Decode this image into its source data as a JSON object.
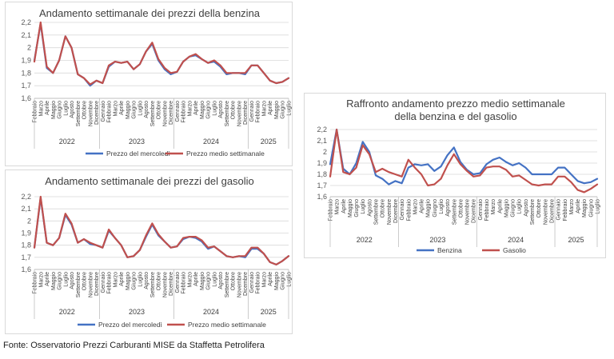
{
  "source": "Fonte: Osservatorio Prezzi Carburanti MISE da Staffetta Petrolifera",
  "colors": {
    "blue": "#4472c4",
    "red": "#c0504d",
    "grid": "#d9d9d9",
    "axis": "#bfbfbf",
    "text": "#595959"
  },
  "month_labels": [
    "Febbraio",
    "Marzo",
    "Aprile",
    "Maggio",
    "Giugno",
    "Luglio",
    "Agosto",
    "Settembre",
    "Ottobre",
    "Novembre",
    "Dicembre",
    "Gennaio",
    "Febbraio",
    "Marzo",
    "Aprile",
    "Maggio",
    "Giugno",
    "Luglio",
    "Agosto",
    "Settembre",
    "Ottobre",
    "Novembre",
    "Dicembre",
    "Gennaio",
    "Febbraio",
    "Marzo",
    "Aprile",
    "Maggio",
    "Giugno",
    "Luglio",
    "Agosto",
    "Settembre",
    "Ottobre",
    "Novembre",
    "Dicembre",
    "Gennaio",
    "Febbraio",
    "Marzo",
    "Aprile",
    "Maggio",
    "Giugno",
    "Luglio"
  ],
  "chart_data": [
    {
      "type": "line",
      "title": "Andamento settimanale dei prezzi della benzina",
      "ylim": [
        1.6,
        2.2
      ],
      "y_ticks": [
        "1,6",
        "1,7",
        "1,8",
        "1,9",
        "2",
        "2,1",
        "2,2"
      ],
      "years": [
        "2022",
        "2023",
        "2024",
        "2025"
      ],
      "x_months": [
        0,
        1,
        2,
        3,
        4,
        5,
        6,
        7,
        8,
        9,
        10,
        11,
        12,
        13,
        14,
        15,
        16,
        17,
        18,
        19,
        20,
        21,
        22,
        23,
        24,
        25,
        26,
        27,
        28,
        29,
        30,
        31,
        32,
        33,
        34,
        35,
        36,
        37,
        38,
        39,
        40,
        41
      ],
      "series": [
        {
          "name": "Prezzo del mercoledì",
          "color": "#4472c4",
          "values": [
            1.9,
            2.19,
            1.84,
            1.8,
            1.9,
            2.09,
            2.0,
            1.79,
            1.76,
            1.7,
            1.74,
            1.72,
            1.85,
            1.89,
            1.88,
            1.89,
            1.83,
            1.87,
            1.97,
            2.03,
            1.9,
            1.83,
            1.79,
            1.81,
            1.89,
            1.93,
            1.94,
            1.91,
            1.88,
            1.89,
            1.85,
            1.79,
            1.8,
            1.8,
            1.79,
            1.86,
            1.86,
            1.8,
            1.74,
            1.72,
            1.73,
            1.76
          ]
        },
        {
          "name": "Prezzo medio settimanale",
          "color": "#c0504d",
          "values": [
            1.89,
            2.2,
            1.85,
            1.8,
            1.9,
            2.09,
            2.0,
            1.79,
            1.76,
            1.71,
            1.74,
            1.72,
            1.86,
            1.89,
            1.88,
            1.89,
            1.83,
            1.87,
            1.97,
            2.04,
            1.91,
            1.84,
            1.8,
            1.81,
            1.89,
            1.93,
            1.95,
            1.91,
            1.88,
            1.9,
            1.86,
            1.8,
            1.8,
            1.8,
            1.8,
            1.86,
            1.86,
            1.8,
            1.74,
            1.72,
            1.73,
            1.76
          ]
        }
      ]
    },
    {
      "type": "line",
      "title": "Andamento settimanale dei prezzi del gasolio",
      "ylim": [
        1.6,
        2.2
      ],
      "y_ticks": [
        "1,6",
        "1,7",
        "1,8",
        "1,9",
        "2",
        "2,1",
        "2,2"
      ],
      "years": [
        "2022",
        "2023",
        "2024",
        "2025"
      ],
      "x_months": [
        0,
        1,
        2,
        3,
        4,
        5,
        6,
        7,
        8,
        9,
        10,
        11,
        12,
        13,
        14,
        15,
        16,
        17,
        18,
        19,
        20,
        21,
        22,
        23,
        24,
        25,
        26,
        27,
        28,
        29,
        30,
        31,
        32,
        33,
        34,
        35,
        36,
        37,
        38,
        39,
        40,
        41
      ],
      "series": [
        {
          "name": "Prezzo del mercoledì",
          "color": "#4472c4",
          "values": [
            1.78,
            2.19,
            1.82,
            1.8,
            1.86,
            2.05,
            1.97,
            1.82,
            1.85,
            1.81,
            1.8,
            1.78,
            1.92,
            1.86,
            1.8,
            1.7,
            1.71,
            1.76,
            1.87,
            1.97,
            1.88,
            1.83,
            1.78,
            1.79,
            1.85,
            1.87,
            1.86,
            1.83,
            1.77,
            1.79,
            1.75,
            1.71,
            1.7,
            1.71,
            1.7,
            1.77,
            1.77,
            1.73,
            1.66,
            1.64,
            1.67,
            1.71
          ]
        },
        {
          "name": "Prezzo medio settimanale",
          "color": "#c0504d",
          "values": [
            1.78,
            2.2,
            1.82,
            1.8,
            1.86,
            2.06,
            1.98,
            1.82,
            1.85,
            1.82,
            1.8,
            1.78,
            1.93,
            1.86,
            1.8,
            1.7,
            1.71,
            1.76,
            1.88,
            1.98,
            1.89,
            1.83,
            1.78,
            1.79,
            1.86,
            1.87,
            1.87,
            1.84,
            1.78,
            1.79,
            1.75,
            1.71,
            1.7,
            1.71,
            1.71,
            1.78,
            1.78,
            1.73,
            1.66,
            1.64,
            1.67,
            1.71
          ]
        }
      ]
    },
    {
      "type": "line",
      "title": "Raffronto andamento prezzo medio settimanale",
      "subtitle": "della benzina e del gasolio",
      "ylim": [
        1.6,
        2.2
      ],
      "y_ticks": [
        "1,6",
        "1,7",
        "1,8",
        "1,9",
        "2",
        "2,1",
        "2,2"
      ],
      "years": [
        "2022",
        "2023",
        "2024",
        "2025"
      ],
      "x_months": [
        0,
        1,
        2,
        3,
        4,
        5,
        6,
        7,
        8,
        9,
        10,
        11,
        12,
        13,
        14,
        15,
        16,
        17,
        18,
        19,
        20,
        21,
        22,
        23,
        24,
        25,
        26,
        27,
        28,
        29,
        30,
        31,
        32,
        33,
        34,
        35,
        36,
        37,
        38,
        39,
        40,
        41
      ],
      "series": [
        {
          "name": "Benzina",
          "color": "#4472c4",
          "values": [
            1.89,
            2.2,
            1.85,
            1.8,
            1.9,
            2.09,
            2.0,
            1.79,
            1.76,
            1.71,
            1.74,
            1.72,
            1.86,
            1.89,
            1.88,
            1.89,
            1.83,
            1.87,
            1.97,
            2.04,
            1.91,
            1.84,
            1.8,
            1.81,
            1.89,
            1.93,
            1.95,
            1.91,
            1.88,
            1.9,
            1.86,
            1.8,
            1.8,
            1.8,
            1.8,
            1.86,
            1.86,
            1.8,
            1.74,
            1.72,
            1.73,
            1.76
          ]
        },
        {
          "name": "Gasolio",
          "color": "#c0504d",
          "values": [
            1.78,
            2.2,
            1.82,
            1.8,
            1.86,
            2.06,
            1.98,
            1.82,
            1.85,
            1.82,
            1.8,
            1.78,
            1.93,
            1.86,
            1.8,
            1.7,
            1.71,
            1.76,
            1.88,
            1.98,
            1.89,
            1.83,
            1.78,
            1.79,
            1.86,
            1.87,
            1.87,
            1.84,
            1.78,
            1.79,
            1.75,
            1.71,
            1.7,
            1.71,
            1.71,
            1.78,
            1.78,
            1.73,
            1.66,
            1.64,
            1.67,
            1.71
          ]
        }
      ]
    }
  ]
}
